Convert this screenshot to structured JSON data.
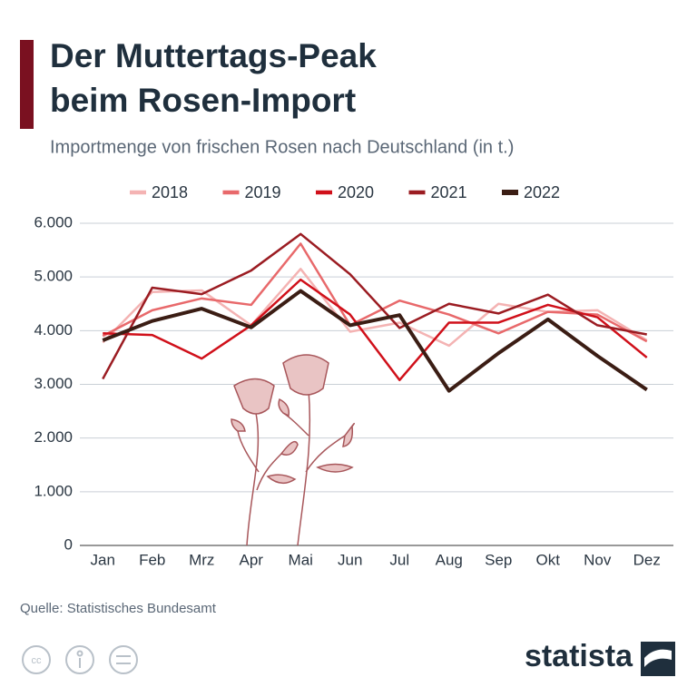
{
  "title_lines": [
    "Der Muttertags-Peak",
    "beim Rosen-Import"
  ],
  "source": "Quelle: Statistisches Bundesamt",
  "brand": "statista",
  "chart_data": {
    "type": "line",
    "subtitle": "Importmenge von frischen Rosen nach Deutschland (in t.)",
    "categories": [
      "Jan",
      "Feb",
      "Mrz",
      "Apr",
      "Mai",
      "Jun",
      "Jul",
      "Aug",
      "Sep",
      "Okt",
      "Nov",
      "Dez"
    ],
    "series": [
      {
        "name": "2018",
        "color": "#f4b3b3",
        "line_width": 2.5,
        "values": [
          3780,
          4720,
          4750,
          4100,
          5150,
          3980,
          4150,
          3720,
          4500,
          4350,
          4380,
          3820
        ]
      },
      {
        "name": "2019",
        "color": "#e8696b",
        "line_width": 2.5,
        "values": [
          3900,
          4380,
          4600,
          4480,
          5620,
          4100,
          4560,
          4300,
          3950,
          4350,
          4300,
          3800
        ]
      },
      {
        "name": "2020",
        "color": "#d0101a",
        "line_width": 2.5,
        "values": [
          3950,
          3920,
          3480,
          4100,
          4950,
          4300,
          3080,
          4150,
          4150,
          4480,
          4250,
          3500
        ]
      },
      {
        "name": "2021",
        "color": "#9b1c22",
        "line_width": 2.5,
        "values": [
          3100,
          4800,
          4680,
          5120,
          5800,
          5050,
          4050,
          4500,
          4320,
          4670,
          4100,
          3930
        ]
      },
      {
        "name": "2022",
        "color": "#3b1d14",
        "line_width": 4,
        "values": [
          3820,
          4180,
          4410,
          4060,
          4740,
          4100,
          4290,
          2880,
          3580,
          4210,
          3530,
          2900
        ]
      }
    ],
    "ylim": [
      0,
      6000
    ],
    "yticks": [
      0,
      {
        "value": 1000,
        "label": "1.000"
      },
      {
        "value": 2000,
        "label": "2.000"
      },
      {
        "value": 3000,
        "label": "3.000"
      },
      {
        "value": 4000,
        "label": "4.000"
      },
      {
        "value": 5000,
        "label": "5.000"
      },
      {
        "value": 6000,
        "label": "6.000"
      }
    ],
    "grid": true,
    "legend": "top"
  }
}
